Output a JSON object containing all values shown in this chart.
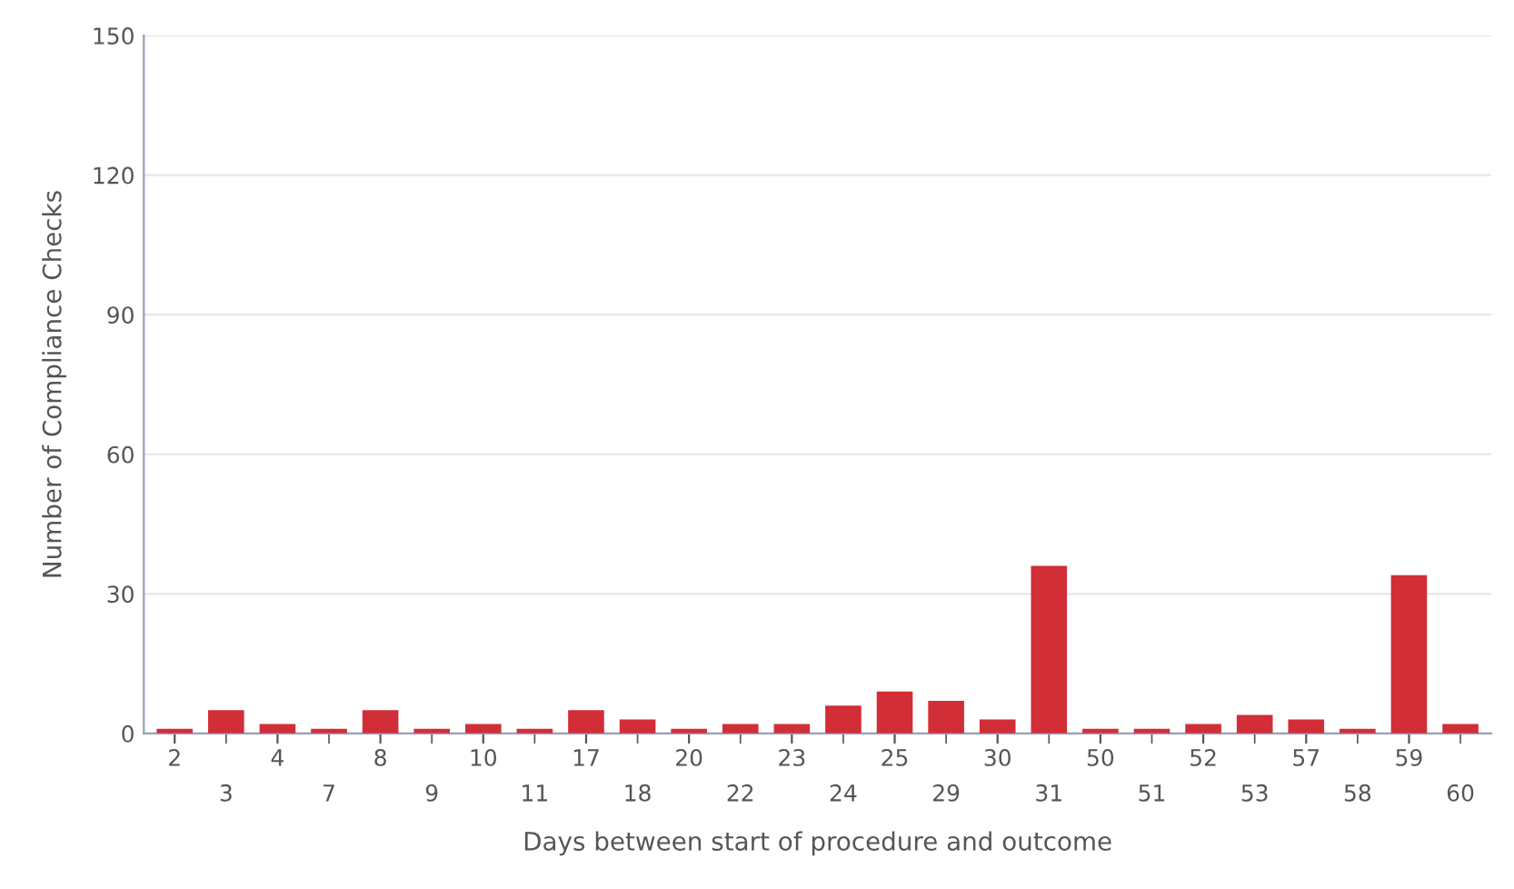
{
  "chart_data": {
    "type": "bar",
    "xlabel": "Days between start of procedure and outcome",
    "ylabel": "Number of Compliance Checks",
    "categories": [
      "2",
      "3",
      "4",
      "7",
      "8",
      "9",
      "10",
      "11",
      "17",
      "18",
      "20",
      "22",
      "23",
      "24",
      "25",
      "29",
      "30",
      "31",
      "50",
      "51",
      "52",
      "53",
      "57",
      "58",
      "59",
      "60"
    ],
    "values": [
      1,
      5,
      2,
      1,
      5,
      1,
      2,
      1,
      5,
      3,
      1,
      2,
      2,
      6,
      9,
      7,
      3,
      36,
      1,
      1,
      2,
      4,
      3,
      1,
      34,
      2
    ],
    "color": "#d12e38",
    "ylim": [
      0,
      150
    ],
    "yticks": [
      0,
      30,
      60,
      90,
      120,
      150
    ],
    "grid": "y",
    "legend": false
  }
}
